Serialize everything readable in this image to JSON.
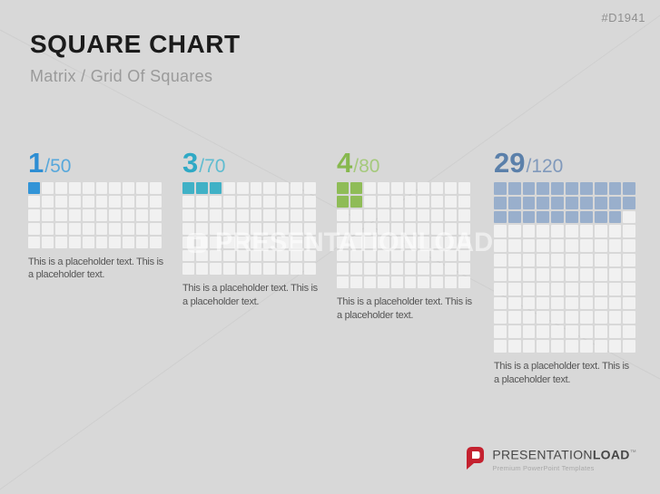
{
  "slide": {
    "code": "#D1941",
    "title": "SQUARE CHART",
    "subtitle": "Matrix / Grid Of Squares"
  },
  "watermark": {
    "text": "PRESENTATIONLOAD"
  },
  "logo": {
    "brand_first": "PRESENTATION",
    "brand_second": "LOAD",
    "trademark": "™",
    "tagline": "Premium PowerPoint Templates",
    "icon_color": "#c4212f"
  },
  "chart_data": {
    "type": "waffle",
    "title": "SQUARE CHART",
    "subtitle": "Matrix / Grid Of Squares",
    "empty_color": "#f1f1f1",
    "series": [
      {
        "value": 1,
        "total": 50,
        "value_label": "1",
        "total_label": "/50",
        "columns": 10,
        "rows": 5,
        "fill_color": "#3294d7",
        "value_color": "#2e8ed3",
        "total_color": "#58a8db",
        "filled_indices": [
          0
        ],
        "caption": "This is a placeholder text. This is a placeholder text."
      },
      {
        "value": 3,
        "total": 70,
        "value_label": "3",
        "total_label": "/70",
        "columns": 10,
        "rows": 7,
        "fill_color": "#40b1c6",
        "value_color": "#2fa9c5",
        "total_color": "#5fbcd0",
        "filled_indices": [
          0,
          1,
          2
        ],
        "caption": "This is a placeholder text. This is a placeholder text."
      },
      {
        "value": 4,
        "total": 80,
        "value_label": "4",
        "total_label": "/80",
        "columns": 10,
        "rows": 8,
        "fill_color": "#8fbc57",
        "value_color": "#87b84e",
        "total_color": "#a5c97c",
        "filled_indices": [
          0,
          1,
          10,
          11
        ],
        "caption": "This is a placeholder text. This is a placeholder text."
      },
      {
        "value": 29,
        "total": 120,
        "value_label": "29",
        "total_label": "/120",
        "columns": 10,
        "rows": 12,
        "fill_color": "#99afcc",
        "value_color": "#5b80aa",
        "total_color": "#8099bb",
        "filled_indices": [
          0,
          1,
          2,
          3,
          4,
          5,
          6,
          7,
          8,
          9,
          10,
          11,
          12,
          13,
          14,
          15,
          16,
          17,
          18,
          19,
          20,
          21,
          22,
          23,
          24,
          25,
          26,
          27,
          28
        ],
        "caption": "This is a placeholder text. This is a placeholder text."
      }
    ]
  }
}
